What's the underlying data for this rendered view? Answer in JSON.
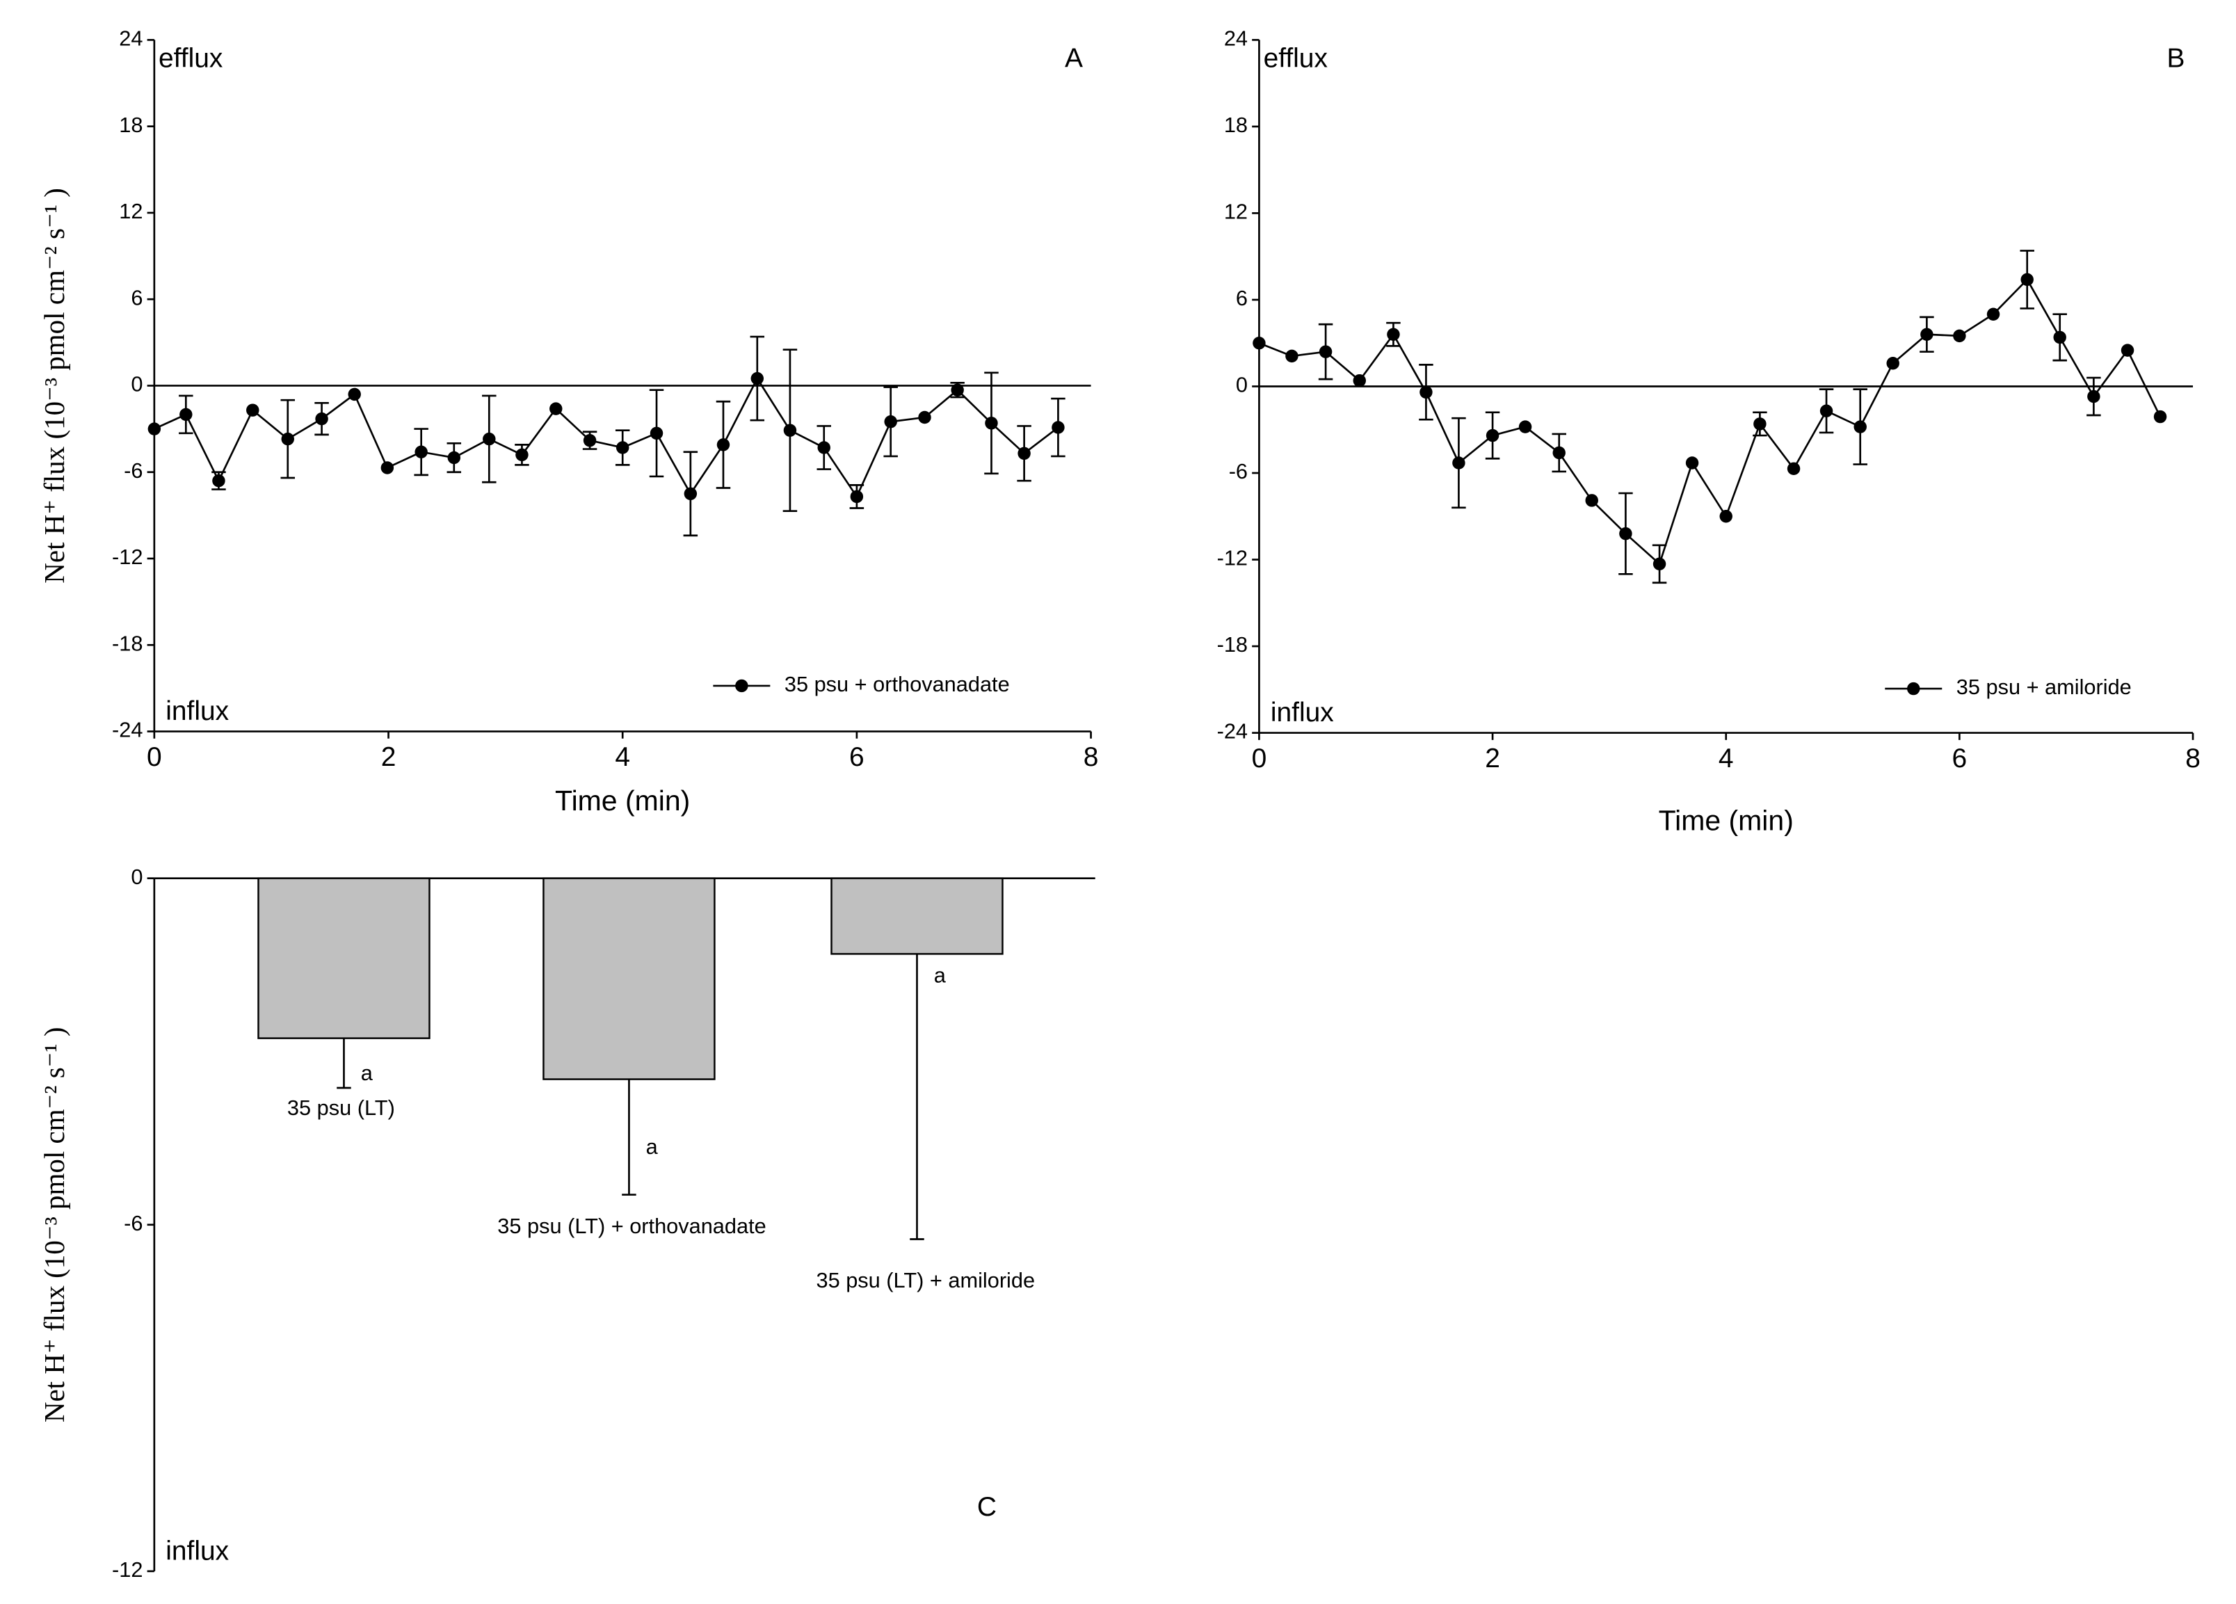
{
  "chart_data": [
    {
      "type": "line",
      "panel": "A",
      "annotations": {
        "top": "efflux",
        "bottom": "influx"
      },
      "xlabel": "Time (min)",
      "ylabel": "Net H⁺ flux (10⁻³ pmol cm⁻² s⁻¹ )",
      "x": [
        0,
        0.27,
        0.55,
        0.84,
        1.14,
        1.43,
        1.71,
        1.99,
        2.28,
        2.56,
        2.86,
        3.14,
        3.43,
        3.72,
        4.0,
        4.29,
        4.58,
        4.86,
        5.15,
        5.43,
        5.72,
        6.0,
        6.29,
        6.58,
        6.86,
        7.15,
        7.43,
        7.72
      ],
      "series": [
        {
          "name": "35 psu + orthovanadate",
          "color": "#000000",
          "values": [
            -3.0,
            -2.0,
            -6.6,
            -1.7,
            -3.7,
            -2.3,
            -0.6,
            -5.7,
            -4.6,
            -5.0,
            -3.7,
            -4.8,
            -1.6,
            -3.8,
            -4.3,
            -3.3,
            -7.5,
            -4.1,
            0.5,
            -3.1,
            -4.3,
            -7.7,
            -2.5,
            -2.2,
            -0.3,
            -2.6,
            -4.7,
            -2.9
          ],
          "errors": [
            null,
            1.3,
            0.6,
            null,
            2.7,
            1.1,
            null,
            null,
            1.6,
            1.0,
            3.0,
            0.7,
            null,
            0.6,
            1.2,
            3.0,
            2.9,
            3.0,
            2.9,
            5.6,
            1.5,
            0.8,
            2.4,
            null,
            0.5,
            3.5,
            1.9,
            2.0
          ]
        }
      ],
      "xlim": [
        0,
        8
      ],
      "xticks": [
        0,
        2,
        4,
        6,
        8
      ],
      "ylim": [
        -24,
        24
      ],
      "yticks": [
        -24,
        -18,
        -12,
        -6,
        0,
        6,
        12,
        18,
        24
      ],
      "legend": "lower right"
    },
    {
      "type": "line",
      "panel": "B",
      "annotations": {
        "top": "efflux",
        "bottom": "influx"
      },
      "xlabel": "Time (min)",
      "x": [
        0,
        0.28,
        0.57,
        0.86,
        1.15,
        1.43,
        1.71,
        2.0,
        2.28,
        2.57,
        2.85,
        3.14,
        3.43,
        3.71,
        4.0,
        4.29,
        4.58,
        4.86,
        5.15,
        5.43,
        5.72,
        6.0,
        6.29,
        6.58,
        6.86,
        7.15,
        7.44,
        7.72
      ],
      "series": [
        {
          "name": "35 psu + amiloride",
          "color": "#000000",
          "values": [
            3.0,
            2.1,
            2.4,
            0.4,
            3.6,
            -0.4,
            -5.3,
            -3.4,
            -2.8,
            -4.6,
            -7.9,
            -10.2,
            -12.3,
            -5.3,
            -9.0,
            -2.6,
            -5.7,
            -1.7,
            -2.8,
            1.6,
            3.6,
            3.5,
            5.0,
            7.4,
            3.4,
            -0.7,
            2.5,
            -2.1
          ],
          "errors": [
            null,
            null,
            1.9,
            null,
            0.8,
            1.9,
            3.1,
            1.6,
            null,
            1.3,
            null,
            2.8,
            1.3,
            null,
            null,
            0.8,
            null,
            1.5,
            2.6,
            null,
            1.2,
            null,
            null,
            2.0,
            1.6,
            1.3,
            null,
            null
          ]
        }
      ],
      "xlim": [
        0,
        8
      ],
      "xticks": [
        0,
        2,
        4,
        6,
        8
      ],
      "ylim": [
        -24,
        24
      ],
      "yticks": [
        -24,
        -18,
        -12,
        -6,
        0,
        6,
        12,
        18,
        24
      ],
      "legend": "lower right"
    },
    {
      "type": "bar",
      "panel": "C",
      "annotations": {
        "bottom": "influx"
      },
      "ylabel": "Net H⁺ flux (10⁻³ pmol cm⁻² s⁻¹ )",
      "categories": [
        "35 psu (LT)",
        "35 psu (LT) + orthovanadate",
        "35 psu (LT) + amiloride"
      ],
      "values": [
        -2.77,
        -3.48,
        -1.31
      ],
      "errors": [
        0.86,
        2.0,
        4.94
      ],
      "significance": [
        "a",
        "a",
        "a"
      ],
      "color": "#c0c0c0",
      "ylim": [
        -12,
        0
      ],
      "yticks": [
        -12,
        -6,
        0
      ]
    }
  ]
}
